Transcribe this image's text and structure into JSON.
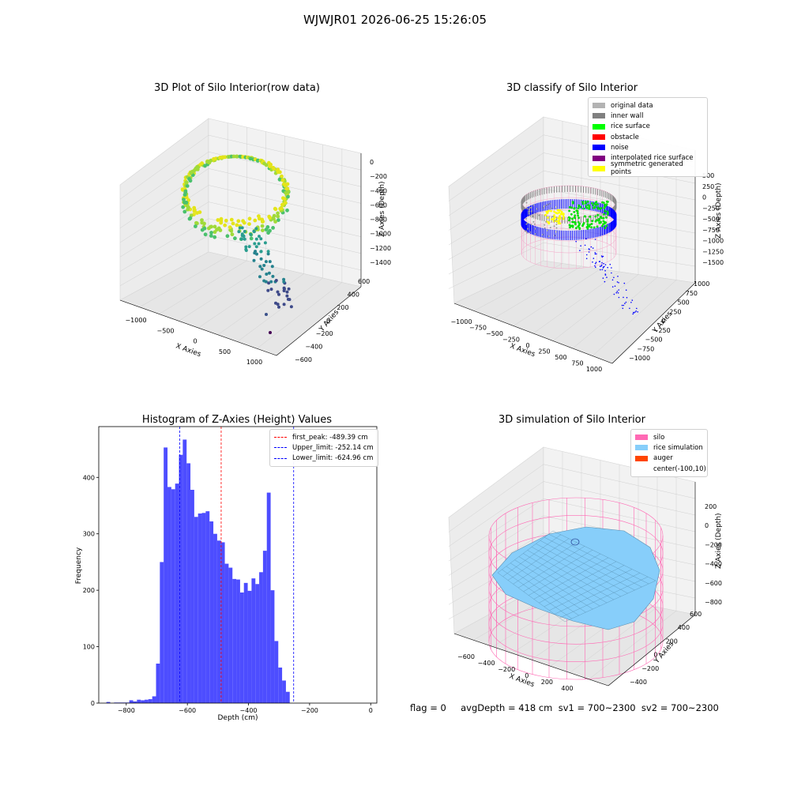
{
  "figure": {
    "suptitle": "WJWJR01 2026-06-25 15:26:05",
    "footer": "flag = 0     avgDepth = 418 cm  sv1 = 700~2300  sv2 = 700~2300"
  },
  "colors": {
    "histogram_bar": "#4d4dff",
    "first_peak_line": "#ff0000",
    "limit_lines": "#0000ff",
    "silo_wire": "#ff69b4",
    "rice_surface": "#87cefa"
  },
  "chart_data": [
    {
      "type": "scatter",
      "projection": "3d",
      "title": "3D Plot of Silo Interior(row data)",
      "xlabel": "X Axies",
      "ylabel": "Y Axies",
      "zlabel": "Z Axies (Depth)",
      "x_ticks": [
        "−1000",
        "−500",
        "0",
        "500",
        "1000"
      ],
      "y_ticks": [
        "−600",
        "−400",
        "−200",
        "0",
        "200",
        "400",
        "600"
      ],
      "z_ticks": [
        "0",
        "−200",
        "−400",
        "−600",
        "−800",
        "−1000",
        "−1200",
        "−1400"
      ],
      "colormap": "viridis",
      "description_points": "ring of points near depth 0 to −400 with sparse points falling to about −1400"
    },
    {
      "type": "scatter",
      "projection": "3d",
      "title": "3D classify of Silo Interior",
      "xlabel": "X Axies",
      "ylabel": "Y Axies",
      "zlabel": "Z Axies (Depth)",
      "x_ticks": [
        "−1000",
        "−750",
        "−500",
        "−250",
        "0",
        "250",
        "500",
        "750",
        "1000"
      ],
      "y_ticks": [
        "−1000",
        "−750",
        "−500",
        "−250",
        "0",
        "250",
        "500",
        "750",
        "1000"
      ],
      "z_ticks": [
        "500",
        "250",
        "0",
        "−250",
        "−500",
        "−750",
        "−1000",
        "−1250",
        "−1500"
      ],
      "legend": [
        {
          "label": "original data",
          "color": "#b3b3b3"
        },
        {
          "label": "inner wall",
          "color": "#808080"
        },
        {
          "label": "rice surface",
          "color": "#00ff00"
        },
        {
          "label": "obstacle",
          "color": "#ff0000"
        },
        {
          "label": "noise",
          "color": "#0000ff"
        },
        {
          "label": "interpolated rice surface",
          "color": "#800080"
        },
        {
          "label": "symmetric generated points",
          "color": "#ffff00"
        }
      ]
    },
    {
      "type": "bar",
      "title": "Histogram of Z-Axies (Height) Values",
      "xlabel": "Depth (cm)",
      "ylabel": "Frequency",
      "xlim": [
        -890,
        20
      ],
      "ylim": [
        0,
        490
      ],
      "x_ticks": [
        -800,
        -600,
        -400,
        -200,
        0
      ],
      "y_ticks": [
        0,
        100,
        200,
        300,
        400
      ],
      "bin_width": 12.5,
      "bin_start": -865,
      "values": [
        2,
        0,
        1,
        1,
        1,
        1,
        5,
        3,
        6,
        5,
        6,
        7,
        12,
        70,
        250,
        453,
        383,
        379,
        389,
        440,
        467,
        425,
        378,
        330,
        336,
        337,
        340,
        322,
        300,
        288,
        285,
        247,
        240,
        220,
        219,
        196,
        213,
        199,
        221,
        211,
        232,
        270,
        373,
        200,
        110,
        63,
        40,
        20
      ],
      "vlines": [
        {
          "label": "first_peak: -489.39 cm",
          "x": -489.39,
          "color": "#ff0000"
        },
        {
          "label": "Upper_limit: -252.14 cm",
          "x": -252.14,
          "color": "#0000ff"
        },
        {
          "label": "Lower_limit: -624.96 cm",
          "x": -624.96,
          "color": "#0000ff"
        }
      ]
    },
    {
      "type": "area",
      "projection": "3d",
      "title": "3D simulation of Silo Interior",
      "xlabel": "X Axies",
      "ylabel": "Y Axies",
      "zlabel": "Z Axies (Depth)",
      "x_ticks": [
        "−600",
        "−400",
        "−200",
        "0",
        "200",
        "400"
      ],
      "y_ticks": [
        "−400",
        "−200",
        "0",
        "200",
        "400",
        "600"
      ],
      "z_ticks": [
        "200",
        "0",
        "−200",
        "−400",
        "−600",
        "−800"
      ],
      "legend": [
        {
          "label": "silo",
          "color": "#ff69b4"
        },
        {
          "label": "rice simulation",
          "color": "#87cefa"
        },
        {
          "label": "auger",
          "color": "#ff4500"
        },
        {
          "label": "center(-100,10)",
          "color": ""
        }
      ]
    }
  ]
}
